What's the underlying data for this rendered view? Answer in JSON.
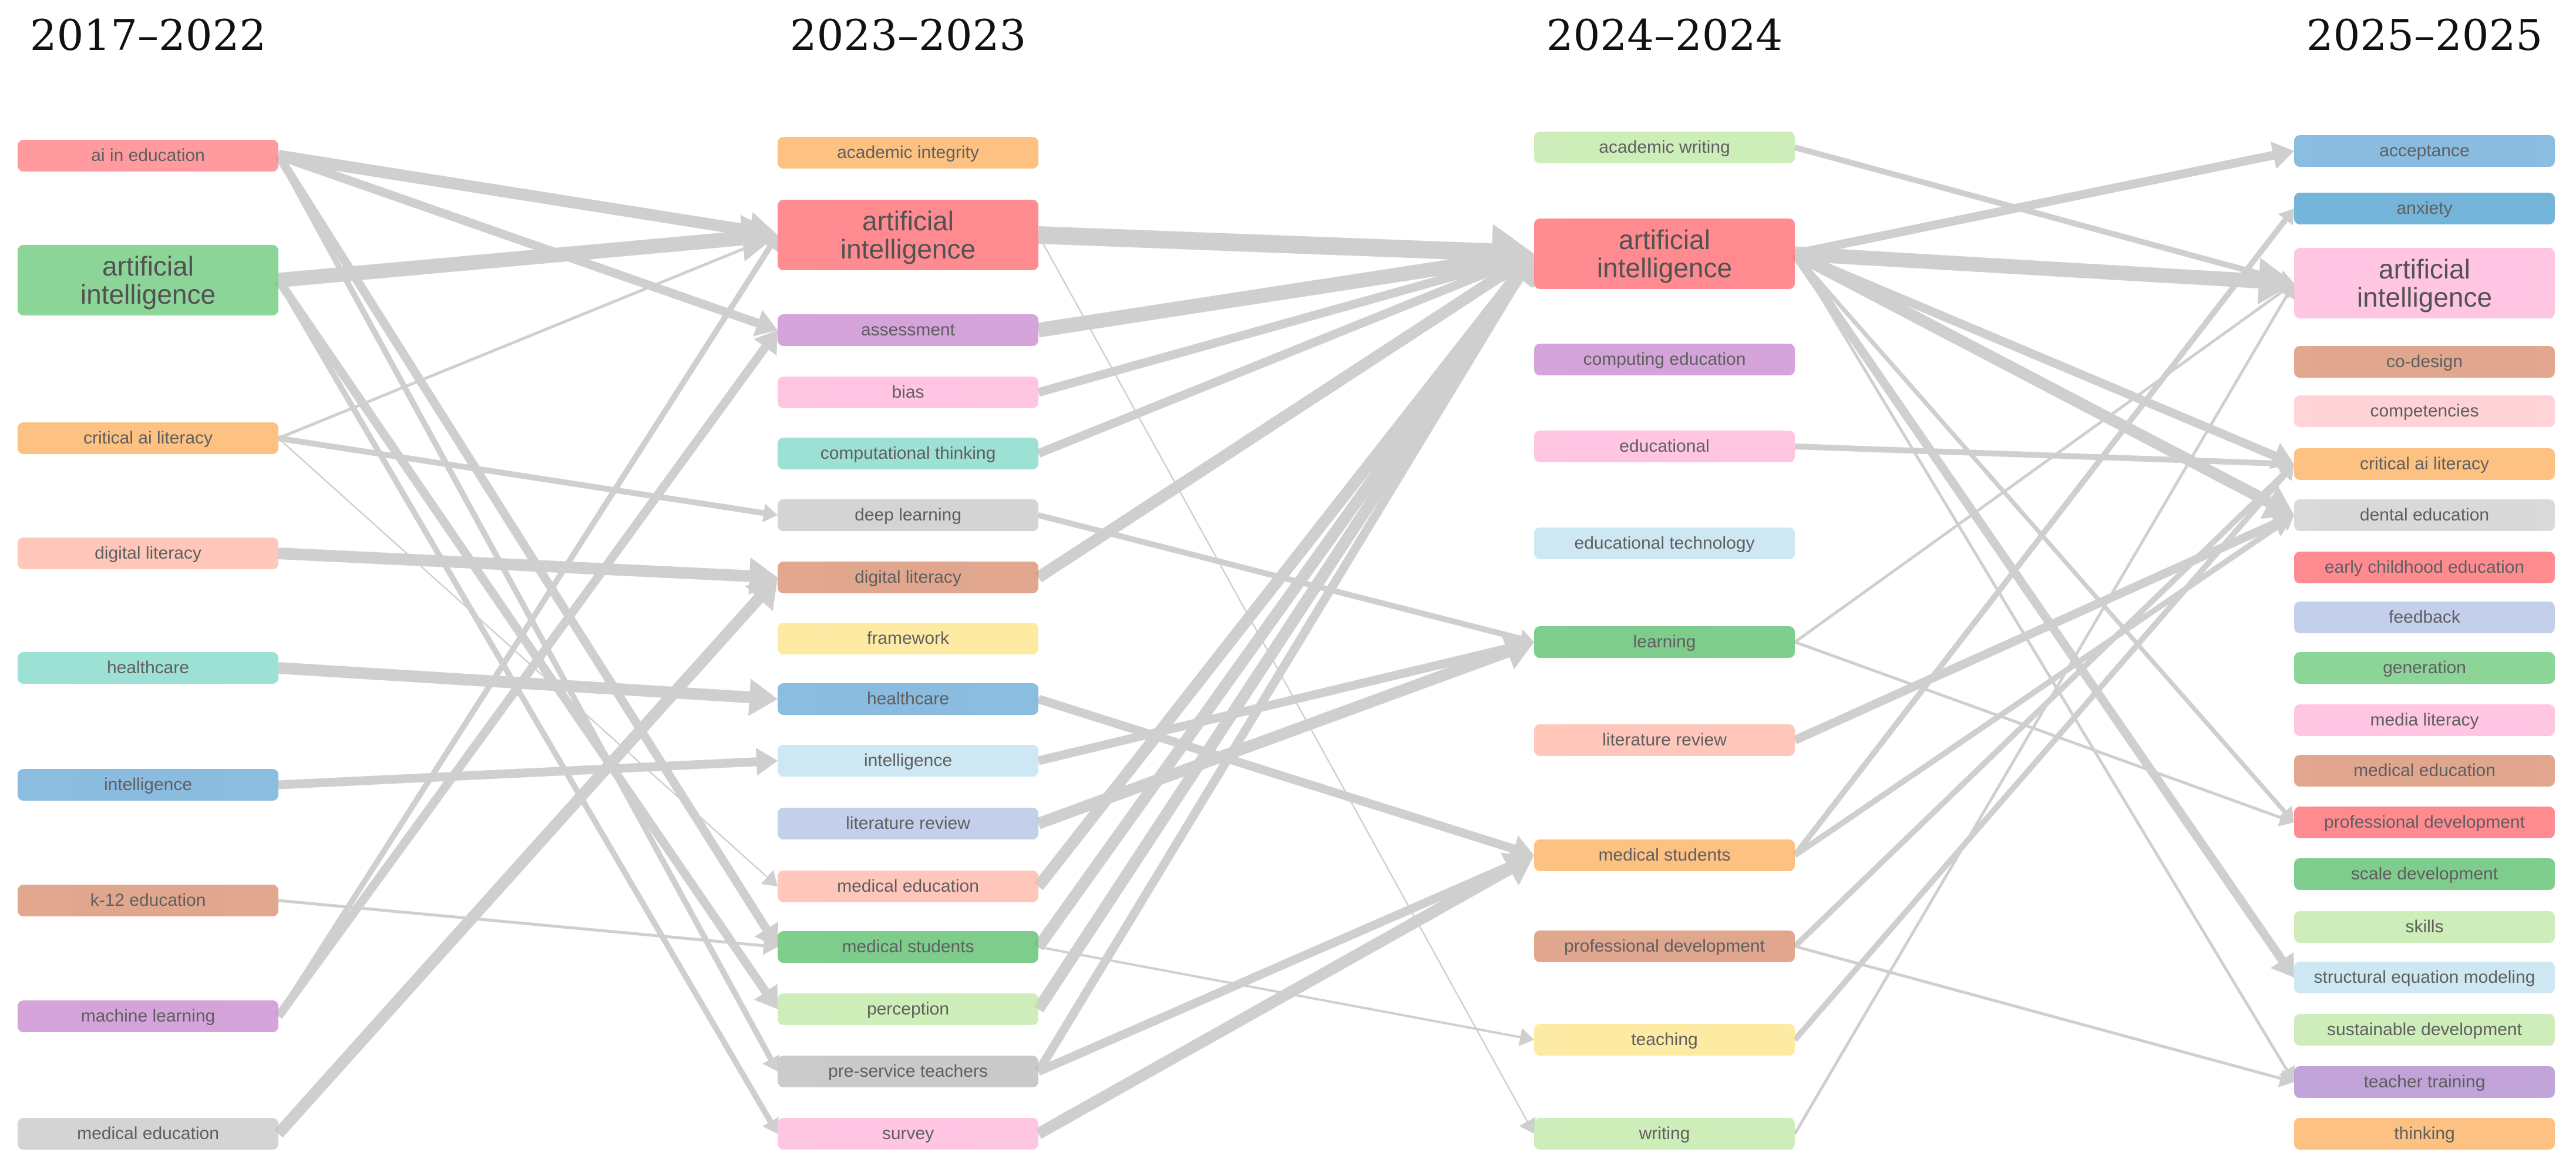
{
  "periods": [
    {
      "label": "2017–2022",
      "nodes": [
        {
          "label": "ai in education",
          "color": "#ff7f84"
        },
        {
          "label": "artificial intelligence",
          "color": "#6cc97c",
          "big": true
        },
        {
          "label": "critical ai literacy",
          "color": "#fdb15f"
        },
        {
          "label": "digital literacy",
          "color": "#ffb8a8"
        },
        {
          "label": "healthcare",
          "color": "#82d8c8"
        },
        {
          "label": "intelligence",
          "color": "#6aaad8"
        },
        {
          "label": "k-12 education",
          "color": "#d98f6f"
        },
        {
          "label": "machine learning",
          "color": "#c98ad0"
        },
        {
          "label": "medical education",
          "color": "#c8c8c8"
        }
      ]
    },
    {
      "label": "2023–2023",
      "nodes": [
        {
          "label": "academic integrity",
          "color": "#fdb15f"
        },
        {
          "label": "artificial intelligence",
          "color": "#ff6b72",
          "big": true
        },
        {
          "label": "assessment",
          "color": "#c98ad0"
        },
        {
          "label": "bias",
          "color": "#ffb6da"
        },
        {
          "label": "computational thinking",
          "color": "#82d8c8"
        },
        {
          "label": "deep learning",
          "color": "#c8c8c8"
        },
        {
          "label": "digital literacy",
          "color": "#d98f6f"
        },
        {
          "label": "framework",
          "color": "#fde58a"
        },
        {
          "label": "healthcare",
          "color": "#6aaad8"
        },
        {
          "label": "intelligence",
          "color": "#bfe2f0"
        },
        {
          "label": "literature review",
          "color": "#b3c2e6"
        },
        {
          "label": "medical education",
          "color": "#ffb8a8"
        },
        {
          "label": "medical students",
          "color": "#5cc06e"
        },
        {
          "label": "perception",
          "color": "#c0e8a6"
        },
        {
          "label": "pre-service teachers",
          "color": "#bcbcbc"
        },
        {
          "label": "survey",
          "color": "#ffb6da"
        }
      ]
    },
    {
      "label": "2024–2024",
      "nodes": [
        {
          "label": "academic writing",
          "color": "#c0e8a6"
        },
        {
          "label": "artificial intelligence",
          "color": "#ff6b72",
          "big": true
        },
        {
          "label": "computing education",
          "color": "#c98ad0"
        },
        {
          "label": "educational",
          "color": "#ffb6da"
        },
        {
          "label": "educational technology",
          "color": "#bfe2f0"
        },
        {
          "label": "learning",
          "color": "#5cc06e"
        },
        {
          "label": "literature review",
          "color": "#ffb8a8"
        },
        {
          "label": "medical students",
          "color": "#fdb15f"
        },
        {
          "label": "professional development",
          "color": "#d98f6f"
        },
        {
          "label": "teaching",
          "color": "#fde58a"
        },
        {
          "label": "writing",
          "color": "#c0e8a6"
        }
      ]
    },
    {
      "label": "2025–2025",
      "nodes": [
        {
          "label": "acceptance",
          "color": "#6aaad8"
        },
        {
          "label": "anxiety",
          "color": "#4ea0cf"
        },
        {
          "label": "artificial intelligence",
          "color": "#ffb6da",
          "big": true
        },
        {
          "label": "co-design",
          "color": "#d98f6f"
        },
        {
          "label": "competencies",
          "color": "#ffc6cc"
        },
        {
          "label": "critical ai literacy",
          "color": "#fdb15f"
        },
        {
          "label": "dental education",
          "color": "#cfcfcf"
        },
        {
          "label": "early childhood education",
          "color": "#ff6b72"
        },
        {
          "label": "feedback",
          "color": "#b3c2e6"
        },
        {
          "label": "generation",
          "color": "#6cc97c"
        },
        {
          "label": "media literacy",
          "color": "#ffb6da"
        },
        {
          "label": "medical education",
          "color": "#d98f6f"
        },
        {
          "label": "professional development",
          "color": "#ff6b72"
        },
        {
          "label": "scale development",
          "color": "#5cc06e"
        },
        {
          "label": "skills",
          "color": "#c0e8a6"
        },
        {
          "label": "structural equation modeling",
          "color": "#bfe2f0"
        },
        {
          "label": "sustainable development",
          "color": "#c0e8a6"
        },
        {
          "label": "teacher training",
          "color": "#b08ad0"
        },
        {
          "label": "thinking",
          "color": "#fdb15f"
        }
      ]
    }
  ],
  "links": [
    {
      "from": [
        0,
        0
      ],
      "to": [
        1,
        1
      ],
      "w": 4
    },
    {
      "from": [
        0,
        0
      ],
      "to": [
        1,
        2
      ],
      "w": 3
    },
    {
      "from": [
        0,
        0
      ],
      "to": [
        1,
        12
      ],
      "w": 3
    },
    {
      "from": [
        0,
        0
      ],
      "to": [
        1,
        14
      ],
      "w": 2
    },
    {
      "from": [
        0,
        1
      ],
      "to": [
        1,
        1
      ],
      "w": 5
    },
    {
      "from": [
        0,
        1
      ],
      "to": [
        1,
        13
      ],
      "w": 3
    },
    {
      "from": [
        0,
        1
      ],
      "to": [
        1,
        15
      ],
      "w": 2
    },
    {
      "from": [
        0,
        2
      ],
      "to": [
        1,
        1
      ],
      "w": 1
    },
    {
      "from": [
        0,
        2
      ],
      "to": [
        1,
        5
      ],
      "w": 2
    },
    {
      "from": [
        0,
        2
      ],
      "to": [
        1,
        11
      ],
      "w": 0.5
    },
    {
      "from": [
        0,
        3
      ],
      "to": [
        1,
        6
      ],
      "w": 4
    },
    {
      "from": [
        0,
        4
      ],
      "to": [
        1,
        8
      ],
      "w": 4
    },
    {
      "from": [
        0,
        5
      ],
      "to": [
        1,
        9
      ],
      "w": 3
    },
    {
      "from": [
        0,
        6
      ],
      "to": [
        1,
        12
      ],
      "w": 1
    },
    {
      "from": [
        0,
        7
      ],
      "to": [
        1,
        2
      ],
      "w": 3
    },
    {
      "from": [
        0,
        7
      ],
      "to": [
        1,
        1
      ],
      "w": 2
    },
    {
      "from": [
        0,
        8
      ],
      "to": [
        1,
        6
      ],
      "w": 4
    },
    {
      "from": [
        1,
        1
      ],
      "to": [
        2,
        1
      ],
      "w": 6
    },
    {
      "from": [
        1,
        2
      ],
      "to": [
        2,
        1
      ],
      "w": 5
    },
    {
      "from": [
        1,
        3
      ],
      "to": [
        2,
        1
      ],
      "w": 3
    },
    {
      "from": [
        1,
        4
      ],
      "to": [
        2,
        1
      ],
      "w": 3
    },
    {
      "from": [
        1,
        6
      ],
      "to": [
        2,
        1
      ],
      "w": 4
    },
    {
      "from": [
        1,
        5
      ],
      "to": [
        2,
        5
      ],
      "w": 2
    },
    {
      "from": [
        1,
        8
      ],
      "to": [
        2,
        7
      ],
      "w": 3
    },
    {
      "from": [
        1,
        9
      ],
      "to": [
        2,
        5
      ],
      "w": 3
    },
    {
      "from": [
        1,
        10
      ],
      "to": [
        2,
        5
      ],
      "w": 4
    },
    {
      "from": [
        1,
        11
      ],
      "to": [
        2,
        1
      ],
      "w": 4
    },
    {
      "from": [
        1,
        12
      ],
      "to": [
        2,
        1
      ],
      "w": 4
    },
    {
      "from": [
        1,
        13
      ],
      "to": [
        2,
        1
      ],
      "w": 4
    },
    {
      "from": [
        1,
        14
      ],
      "to": [
        2,
        1
      ],
      "w": 3
    },
    {
      "from": [
        1,
        14
      ],
      "to": [
        2,
        7
      ],
      "w": 3
    },
    {
      "from": [
        1,
        15
      ],
      "to": [
        2,
        7
      ],
      "w": 4
    },
    {
      "from": [
        1,
        1
      ],
      "to": [
        2,
        10
      ],
      "w": 0.5
    },
    {
      "from": [
        1,
        12
      ],
      "to": [
        2,
        9
      ],
      "w": 0.8
    },
    {
      "from": [
        2,
        0
      ],
      "to": [
        3,
        2
      ],
      "w": 2
    },
    {
      "from": [
        2,
        1
      ],
      "to": [
        3,
        0
      ],
      "w": 3
    },
    {
      "from": [
        2,
        1
      ],
      "to": [
        3,
        2
      ],
      "w": 5
    },
    {
      "from": [
        2,
        1
      ],
      "to": [
        3,
        5
      ],
      "w": 3
    },
    {
      "from": [
        2,
        1
      ],
      "to": [
        3,
        6
      ],
      "w": 4
    },
    {
      "from": [
        2,
        1
      ],
      "to": [
        3,
        12
      ],
      "w": 1.5
    },
    {
      "from": [
        2,
        1
      ],
      "to": [
        3,
        15
      ],
      "w": 3
    },
    {
      "from": [
        2,
        1
      ],
      "to": [
        3,
        17
      ],
      "w": 1
    },
    {
      "from": [
        2,
        3
      ],
      "to": [
        3,
        5
      ],
      "w": 2
    },
    {
      "from": [
        2,
        5
      ],
      "to": [
        3,
        2
      ],
      "w": 1
    },
    {
      "from": [
        2,
        5
      ],
      "to": [
        3,
        12
      ],
      "w": 1
    },
    {
      "from": [
        2,
        6
      ],
      "to": [
        3,
        6
      ],
      "w": 3
    },
    {
      "from": [
        2,
        7
      ],
      "to": [
        3,
        1
      ],
      "w": 2
    },
    {
      "from": [
        2,
        7
      ],
      "to": [
        3,
        6
      ],
      "w": 2
    },
    {
      "from": [
        2,
        8
      ],
      "to": [
        3,
        5
      ],
      "w": 2
    },
    {
      "from": [
        2,
        8
      ],
      "to": [
        3,
        17
      ],
      "w": 1
    },
    {
      "from": [
        2,
        9
      ],
      "to": [
        3,
        5
      ],
      "w": 2
    },
    {
      "from": [
        2,
        10
      ],
      "to": [
        3,
        2
      ],
      "w": 1
    }
  ]
}
